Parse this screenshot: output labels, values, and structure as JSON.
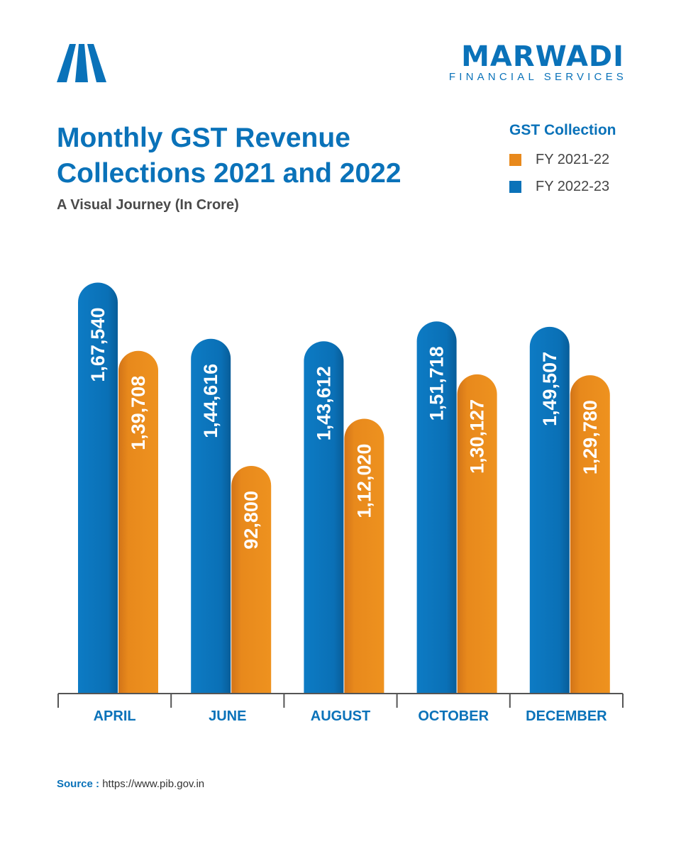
{
  "brand": {
    "name": "MARWADI",
    "tagline": "FINANCIAL SERVICES",
    "logo_icon": "road-stripes-logo",
    "color": "#0a72b9"
  },
  "header": {
    "title": "Monthly GST Revenue Collections 2021 and 2022",
    "subtitle": "A Visual Journey (In Crore)"
  },
  "legend": {
    "title": "GST Collection",
    "items": [
      {
        "label": "FY 2021-22",
        "color": "#e8891c"
      },
      {
        "label": "FY 2022-23",
        "color": "#0a72b9"
      }
    ]
  },
  "chart_data": {
    "type": "bar",
    "title": "Monthly GST Revenue Collections 2021 and 2022",
    "subtitle": "A Visual Journey (In Crore)",
    "categories": [
      "APRIL",
      "JUNE",
      "AUGUST",
      "OCTOBER",
      "DECEMBER"
    ],
    "series": [
      {
        "name": "FY 2022-23",
        "color": "#0a72b9",
        "values": [
          167540,
          144616,
          143612,
          151718,
          149507
        ],
        "labels": [
          "1,67,540",
          "1,44,616",
          "1,43,612",
          "1,51,718",
          "1,49,507"
        ]
      },
      {
        "name": "FY 2021-22",
        "color": "#e8891c",
        "values": [
          139708,
          92800,
          112020,
          130127,
          129780
        ],
        "labels": [
          "1,39,708",
          "92,800",
          "1,12,020",
          "1,30,127",
          "1,29,780"
        ]
      }
    ],
    "ylim": [
      0,
      170000
    ],
    "grid": false,
    "legend_position": "top-right",
    "data_labels": "vertical-inside-bars"
  },
  "source": {
    "label": "Source :",
    "url": "https://www.pib.gov.in"
  }
}
